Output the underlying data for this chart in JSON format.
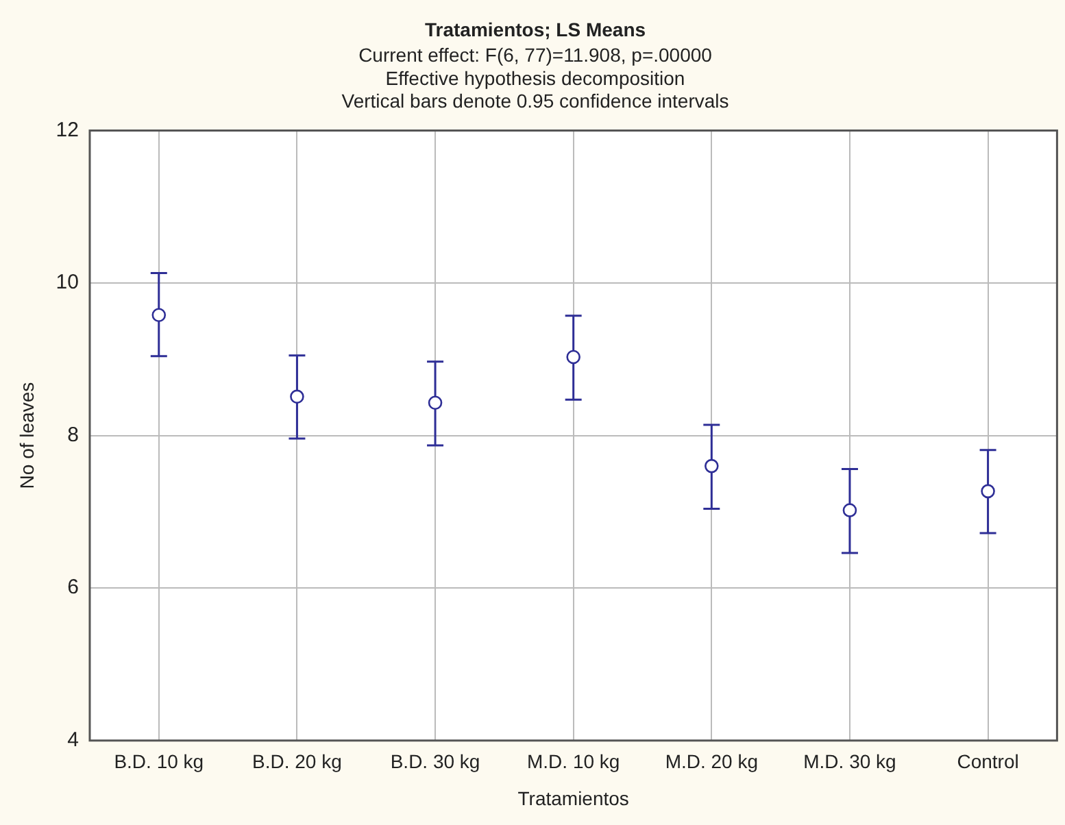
{
  "chart_data": {
    "type": "scatter",
    "title": "Tratamientos; LS Means",
    "subtitle": "Current effect: F(6, 77)=11.908, p=.00000",
    "annotations": [
      "Effective hypothesis decomposition",
      "Vertical bars denote 0.95 confidence intervals"
    ],
    "xlabel": "Tratamientos",
    "ylabel": "No of leaves",
    "categories": [
      "B.D. 10 kg",
      "B.D. 20 kg",
      "B.D. 30 kg",
      "M.D. 10 kg",
      "M.D. 20 kg",
      "M.D. 30 kg",
      "Control"
    ],
    "series": [
      {
        "color": "#2e2e96",
        "values": [
          9.58,
          8.51,
          8.43,
          9.03,
          7.6,
          7.02,
          7.27
        ],
        "errors": [
          [
            9.04,
            10.13
          ],
          [
            7.96,
            9.05
          ],
          [
            7.87,
            8.97
          ],
          [
            8.47,
            9.57
          ],
          [
            7.04,
            8.14
          ],
          [
            6.46,
            7.56
          ],
          [
            6.72,
            7.81
          ]
        ]
      }
    ],
    "ylim": [
      4,
      12
    ],
    "yticks": [
      4,
      6,
      8,
      10,
      12
    ],
    "grid": true,
    "marker": "circle",
    "legend": false
  }
}
